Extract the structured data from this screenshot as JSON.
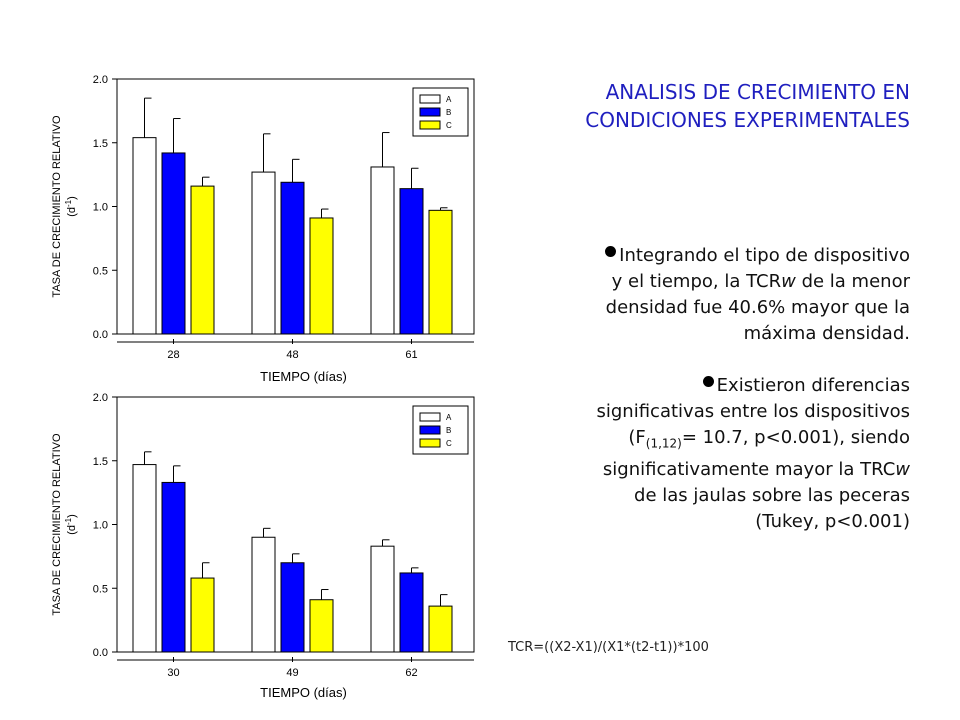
{
  "slide": {
    "title_line1": "ANALISIS DE CRECIMIENTO EN",
    "title_line2": "CONDICIONES EXPERIMENTALES",
    "bullet1_lines": [
      "Integrando el tipo de dispositivo",
      "y el tiempo, la TCR",
      "w",
      " de la menor",
      "densidad fue 40.6% mayor que la",
      "máxima densidad."
    ],
    "bullet2_lines": [
      "Existieron diferencias",
      "significativas entre los dispositivos",
      "(F",
      "(1,12)",
      "= 10.7, p<0.001), siendo",
      "significativamente mayor la TRC",
      "w",
      "de las jaulas sobre las peceras",
      "(Tukey, p<0.001)"
    ],
    "formula": "TCR=((X2-X1)/(X1*(t2-t1))*100"
  },
  "colors": {
    "A": "#ffffff",
    "B": "#0000ff",
    "C": "#ffff00",
    "title": "#1f1fbf"
  },
  "chart_data": [
    {
      "type": "bar",
      "ylabel_line1": "TASA DE CRECIMIENTO RELATIVO",
      "ylabel_unit": "(d",
      "ylabel_sup": "-1",
      "ylabel_close": ")",
      "xlabel": "TIEMPO (días)",
      "categories": [
        "28",
        "48",
        "61"
      ],
      "ylim": [
        0,
        2.0
      ],
      "yticks": [
        "0.0",
        "0.5",
        "1.0",
        "1.5",
        "2.0"
      ],
      "legend_position": "top-right",
      "series": [
        {
          "name": "A",
          "values": [
            1.54,
            1.27,
            1.31
          ],
          "errors": [
            0.31,
            0.3,
            0.27
          ]
        },
        {
          "name": "B",
          "values": [
            1.42,
            1.19,
            1.14
          ],
          "errors": [
            0.27,
            0.18,
            0.16
          ]
        },
        {
          "name": "C",
          "values": [
            1.16,
            0.91,
            0.97
          ],
          "errors": [
            0.07,
            0.07,
            0.02
          ]
        }
      ]
    },
    {
      "type": "bar",
      "ylabel_line1": "TASA DE CRECIMIENTO RELATIVO",
      "ylabel_unit": "(d",
      "ylabel_sup": "-1",
      "ylabel_close": ")",
      "xlabel": "TIEMPO (días)",
      "categories": [
        "30",
        "49",
        "62"
      ],
      "ylim": [
        0,
        2.0
      ],
      "yticks": [
        "0.0",
        "0.5",
        "1.0",
        "1.5",
        "2.0"
      ],
      "legend_position": "top-right",
      "series": [
        {
          "name": "A",
          "values": [
            1.47,
            0.9,
            0.83
          ],
          "errors": [
            0.1,
            0.07,
            0.05
          ]
        },
        {
          "name": "B",
          "values": [
            1.33,
            0.7,
            0.62
          ],
          "errors": [
            0.13,
            0.07,
            0.04
          ]
        },
        {
          "name": "C",
          "values": [
            0.58,
            0.41,
            0.36
          ],
          "errors": [
            0.12,
            0.08,
            0.09
          ]
        }
      ]
    }
  ]
}
